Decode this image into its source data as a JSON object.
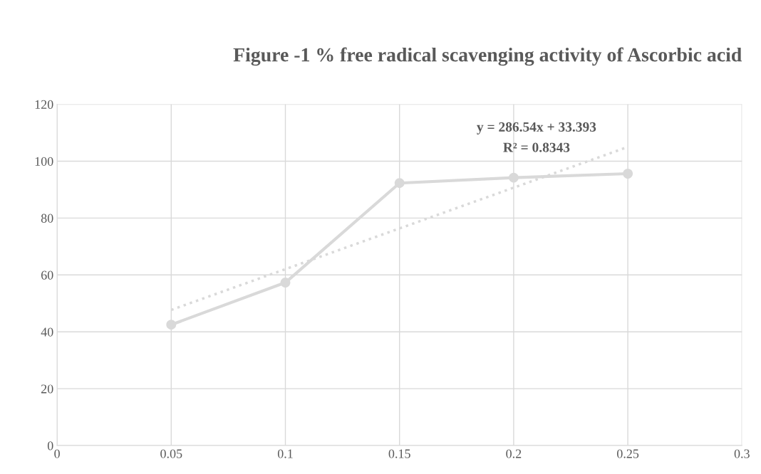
{
  "chart_data": {
    "type": "line",
    "title": "Figure -1 % free radical scavenging activity of Ascorbic acid",
    "x": [
      0.05,
      0.1,
      0.15,
      0.2,
      0.25
    ],
    "series": [
      {
        "color": "#d9d9d9",
        "values": [
          42.5,
          57.3,
          92.3,
          94.2,
          95.6
        ],
        "marker": "circle",
        "line_style": "solid"
      },
      {
        "type": "line",
        "color": "#d9d9d9",
        "x": [
          0.05,
          0.25
        ],
        "values": [
          47.7,
          105.0
        ],
        "marker": "none",
        "line_style": "dotted"
      }
    ],
    "xlim": [
      0,
      0.3
    ],
    "xticks": [
      0,
      0.05,
      0.1,
      0.15,
      0.2,
      0.25,
      0.3
    ],
    "ylim": [
      0,
      120
    ],
    "yticks": [
      0,
      20,
      40,
      60,
      80,
      100,
      120
    ],
    "grid": true,
    "annotations": [
      "y = 286.54x + 33.393",
      "R² = 0.8343"
    ]
  }
}
